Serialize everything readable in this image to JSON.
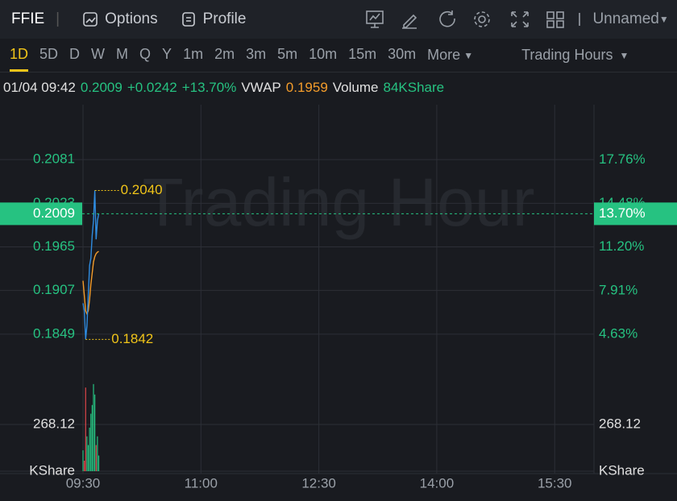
{
  "header": {
    "symbol": "FFIE",
    "tabs": [
      "Options",
      "Profile"
    ],
    "layout": "Unnamed"
  },
  "toolbar": {
    "periods": [
      "1D",
      "5D",
      "D",
      "W",
      "M",
      "Q",
      "Y",
      "1m",
      "2m",
      "3m",
      "5m",
      "10m",
      "15m",
      "30m"
    ],
    "selected": 0,
    "more": "More",
    "session": "Trading Hours"
  },
  "info": {
    "time": "01/04 09:42",
    "price": "0.2009",
    "change": "+0.0242",
    "change_pct": "+13.70%",
    "vwap_label": "VWAP",
    "vwap": "0.1959",
    "volume_label": "Volume",
    "volume": "84KShare"
  },
  "chart_data": {
    "type": "line",
    "watermark": "Trading Hour",
    "x": [
      "09:30",
      "09:31",
      "09:32",
      "09:33",
      "09:34",
      "09:35",
      "09:36",
      "09:37",
      "09:38",
      "09:39",
      "09:40",
      "09:41",
      "09:42"
    ],
    "xlim": [
      "09:30",
      "16:00"
    ],
    "xticks": [
      "09:30",
      "11:00",
      "12:30",
      "14:00",
      "15:30"
    ],
    "price": {
      "color": "#2f8ce0",
      "values": [
        0.189,
        0.188,
        0.1842,
        0.186,
        0.19,
        0.194,
        0.195,
        0.198,
        0.2,
        0.204,
        0.1975,
        0.2,
        0.2009
      ]
    },
    "vwap": {
      "color": "#f39c2b",
      "values": [
        0.192,
        0.19,
        0.188,
        0.1876,
        0.188,
        0.1895,
        0.1915,
        0.193,
        0.1945,
        0.1952,
        0.1956,
        0.1958,
        0.1959
      ]
    },
    "ylim": [
      0.1791,
      0.2139
    ],
    "yticks": [
      0.2081,
      0.2023,
      0.1965,
      0.1907,
      0.1849
    ],
    "y2lim": [
      1.36,
      21.05
    ],
    "y2ticks": [
      {
        "value": 17.76,
        "label": "17.76%"
      },
      {
        "value": 14.48,
        "label": "14.48%"
      },
      {
        "value": 11.2,
        "label": "11.20%"
      },
      {
        "value": 7.91,
        "label": "7.91%"
      },
      {
        "value": 4.63,
        "label": "4.63%"
      }
    ],
    "volume": {
      "up_color": "#26c281",
      "down_color": "#e0464b",
      "values": [
        120,
        60,
        480,
        200,
        150,
        250,
        330,
        380,
        500,
        440,
        150,
        200,
        90
      ]
    },
    "vlim": [
      0,
      536.24
    ],
    "vticks": [
      {
        "value": 0,
        "label": "KShare"
      },
      268.12
    ],
    "annotations": [
      {
        "x": "09:39",
        "value": 0.204,
        "label": "0.2040"
      },
      {
        "x": "09:32",
        "value": 0.1842,
        "label": "0.1842"
      }
    ],
    "last": {
      "value": 0.2009,
      "label": "0.2009",
      "pct_label": "13.70%",
      "color": "#26c281"
    },
    "grid": true
  }
}
